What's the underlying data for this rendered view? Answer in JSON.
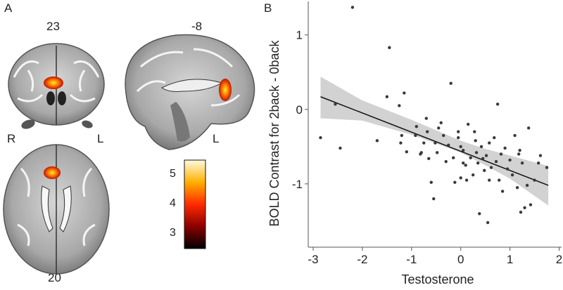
{
  "figure": {
    "panel_a_letter": "A",
    "panel_b_letter": "B",
    "coronal_slice_label": "23",
    "sagittal_slice_label": "-8",
    "axial_slice_label": "20",
    "coronal_right_letter": "R",
    "coronal_left_letter": "L",
    "sagittal_left_letter": "L",
    "colorbar": {
      "ticks": [
        "5",
        "4",
        "3"
      ],
      "tick_values": [
        5,
        4,
        3
      ],
      "range": [
        2.5,
        5.5
      ]
    }
  },
  "chart_data": {
    "type": "scatter",
    "title": "",
    "xlabel": "Testosterone",
    "ylabel": "BOLD Contrast for 2back - 0back",
    "xlim": [
      -3.1,
      2.05
    ],
    "ylim": [
      -1.85,
      1.45
    ],
    "x_ticks": [
      -3,
      -2,
      -1,
      0,
      1,
      2
    ],
    "x_tick_labels": [
      "-3",
      "-2",
      "-1",
      "0",
      "1",
      "2"
    ],
    "y_ticks": [
      -1,
      0,
      1
    ],
    "y_tick_labels": [
      "-1",
      "0",
      "1"
    ],
    "grid": false,
    "regression_line": {
      "x": [
        -2.85,
        1.78
      ],
      "y": [
        0.17,
        -1.02
      ]
    },
    "confidence_band": {
      "x": [
        -2.85,
        -2,
        -1,
        0,
        0.5,
        1,
        1.78
      ],
      "upper": [
        0.44,
        0.12,
        -0.14,
        -0.42,
        -0.53,
        -0.62,
        -0.76
      ],
      "lower": [
        -0.12,
        -0.15,
        -0.34,
        -0.58,
        -0.75,
        -0.93,
        -1.29
      ]
    },
    "series": [
      {
        "values": [
          [
            -2.85,
            -0.38
          ],
          [
            -2.55,
            0.07
          ],
          [
            -2.2,
            1.37
          ],
          [
            -1.7,
            -0.42
          ],
          [
            -1.5,
            0.17
          ],
          [
            -1.45,
            0.83
          ],
          [
            -1.25,
            0.05
          ],
          [
            -1.2,
            -0.35
          ],
          [
            -1.15,
            0.22
          ],
          [
            -1.1,
            -0.57
          ],
          [
            -0.9,
            -0.23
          ],
          [
            -0.82,
            -0.6
          ],
          [
            -0.8,
            -0.58
          ],
          [
            -0.75,
            -0.45
          ],
          [
            -0.7,
            -0.12
          ],
          [
            -0.68,
            -0.3
          ],
          [
            -0.65,
            -0.66
          ],
          [
            -0.6,
            -0.98
          ],
          [
            -0.55,
            -1.2
          ],
          [
            -0.52,
            -0.45
          ],
          [
            -0.48,
            -0.58
          ],
          [
            -0.45,
            -0.25
          ],
          [
            -0.4,
            -0.18
          ],
          [
            -0.35,
            -0.35
          ],
          [
            -0.3,
            -0.7
          ],
          [
            -0.25,
            -0.48
          ],
          [
            -0.2,
            0.35
          ],
          [
            -0.15,
            -0.65
          ],
          [
            -0.12,
            -0.98
          ],
          [
            -0.05,
            -0.38
          ],
          [
            0.0,
            -0.92
          ],
          [
            0.05,
            -0.55
          ],
          [
            0.1,
            -0.75
          ],
          [
            0.12,
            -0.95
          ],
          [
            0.15,
            -0.2
          ],
          [
            0.2,
            -0.65
          ],
          [
            0.25,
            -0.88
          ],
          [
            0.28,
            -0.3
          ],
          [
            0.3,
            -0.42
          ],
          [
            0.32,
            -0.58
          ],
          [
            0.35,
            -0.72
          ],
          [
            0.38,
            -1.4
          ],
          [
            0.42,
            -0.5
          ],
          [
            0.45,
            -0.66
          ],
          [
            0.48,
            -0.82
          ],
          [
            0.52,
            -0.62
          ],
          [
            0.55,
            -1.52
          ],
          [
            0.58,
            -0.95
          ],
          [
            0.62,
            -0.78
          ],
          [
            0.68,
            -0.38
          ],
          [
            0.72,
            -0.7
          ],
          [
            0.75,
            0.07
          ],
          [
            0.78,
            -0.95
          ],
          [
            0.82,
            -0.6
          ],
          [
            0.85,
            -1.1
          ],
          [
            0.9,
            -0.52
          ],
          [
            0.95,
            -0.8
          ],
          [
            1.0,
            -0.68
          ],
          [
            1.05,
            -0.88
          ],
          [
            1.1,
            -0.35
          ],
          [
            1.15,
            -1.05
          ],
          [
            1.2,
            -0.55
          ],
          [
            1.22,
            -1.38
          ],
          [
            1.25,
            -0.72
          ],
          [
            1.3,
            -1.32
          ],
          [
            1.35,
            -1.02
          ],
          [
            1.38,
            -0.25
          ],
          [
            1.42,
            -1.28
          ],
          [
            1.5,
            -0.95
          ],
          [
            1.58,
            -0.72
          ],
          [
            1.62,
            -0.62
          ],
          [
            1.75,
            -0.78
          ],
          [
            -1.22,
            -0.45
          ],
          [
            -0.92,
            -0.35
          ],
          [
            -0.05,
            -0.3
          ],
          [
            0.0,
            -0.5
          ],
          [
            -2.45,
            -0.52
          ],
          [
            1.18,
            -0.6
          ],
          [
            0.58,
            -0.45
          ],
          [
            0.05,
            -0.72
          ]
        ]
      }
    ]
  }
}
